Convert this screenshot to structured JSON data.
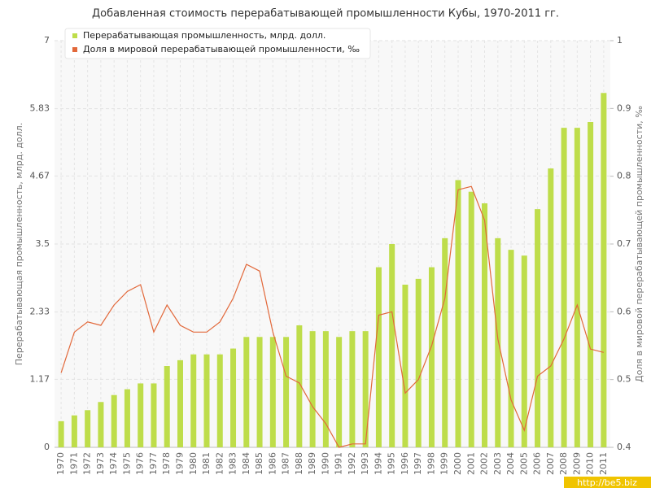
{
  "chart_data": {
    "type": "combo",
    "title": "Добавленная стоимость перерабатывающей промышленности Кубы, 1970-2011 гг.",
    "y_label": "Перерабатывающая промышленность, млрд. долл.",
    "y2_label": "Доля в мировой перерабатывающей промышленности, ‰",
    "watermark": "http://be5.biz",
    "categories": [
      "1970",
      "1971",
      "1972",
      "1973",
      "1974",
      "1975",
      "1976",
      "1977",
      "1978",
      "1979",
      "1980",
      "1981",
      "1982",
      "1983",
      "1984",
      "1985",
      "1986",
      "1987",
      "1988",
      "1989",
      "1990",
      "1991",
      "1992",
      "1993",
      "1994",
      "1995",
      "1996",
      "1997",
      "1998",
      "1999",
      "2000",
      "2001",
      "2002",
      "2003",
      "2004",
      "2005",
      "2006",
      "2007",
      "2008",
      "2009",
      "2010",
      "2011"
    ],
    "series": [
      {
        "name": "Перерабатывающая промышленность, млрд. долл.",
        "color": "#bedd4a",
        "kind": "bar",
        "values": [
          0.45,
          0.55,
          0.64,
          0.78,
          0.9,
          1.0,
          1.1,
          1.1,
          1.4,
          1.5,
          1.6,
          1.6,
          1.6,
          1.7,
          1.9,
          1.9,
          1.9,
          1.9,
          2.1,
          2.0,
          2.0,
          1.9,
          2.0,
          2.0,
          3.1,
          3.5,
          2.8,
          2.9,
          3.1,
          3.6,
          4.6,
          4.4,
          4.2,
          3.6,
          3.4,
          3.3,
          4.1,
          4.8,
          5.5,
          5.5,
          5.6,
          6.1
        ]
      },
      {
        "name": "Доля в мировой перерабатывающей промышленности, ‰",
        "color": "#e2683a",
        "kind": "line",
        "axis": "y2",
        "values": [
          0.51,
          0.57,
          0.585,
          0.58,
          0.61,
          0.63,
          0.64,
          0.57,
          0.61,
          0.58,
          0.57,
          0.57,
          0.585,
          0.62,
          0.67,
          0.66,
          0.57,
          0.505,
          0.495,
          0.46,
          0.435,
          0.4,
          0.405,
          0.405,
          0.595,
          0.6,
          0.48,
          0.5,
          0.55,
          0.62,
          0.78,
          0.785,
          0.735,
          0.56,
          0.47,
          0.425,
          0.505,
          0.52,
          0.56,
          0.61,
          0.545,
          0.54
        ]
      }
    ],
    "ylim": [
      0,
      7
    ],
    "yticks": [
      0,
      1.17,
      2.33,
      3.5,
      4.67,
      5.83,
      7
    ],
    "y2lim": [
      0.4,
      1
    ],
    "y2ticks": [
      0.4,
      0.5,
      0.6,
      0.7,
      0.8,
      0.9,
      1
    ],
    "grid": true,
    "legend": "top-left"
  }
}
